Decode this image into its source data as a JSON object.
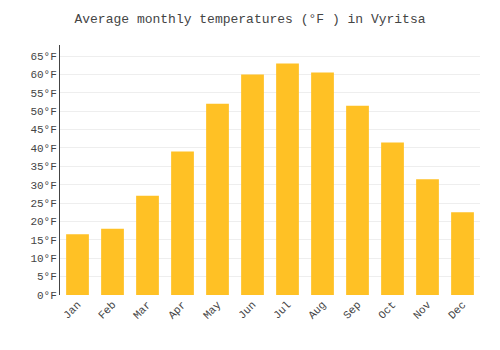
{
  "chart_data": {
    "type": "bar",
    "title": "Average monthly temperatures (°F ) in Vyritsa",
    "categories": [
      "Jan",
      "Feb",
      "Mar",
      "Apr",
      "May",
      "Jun",
      "Jul",
      "Aug",
      "Sep",
      "Oct",
      "Nov",
      "Dec"
    ],
    "values": [
      16.5,
      18.0,
      27.0,
      39.0,
      52.0,
      60.0,
      63.0,
      60.5,
      51.5,
      41.5,
      31.5,
      22.5
    ],
    "color": "#FFC125",
    "ylim": [
      0,
      68
    ],
    "yticks": [
      {
        "value": 0,
        "label": "0°F"
      },
      {
        "value": 5,
        "label": "5°F"
      },
      {
        "value": 10,
        "label": "10°F"
      },
      {
        "value": 15,
        "label": "15°F"
      },
      {
        "value": 20,
        "label": "20°F"
      },
      {
        "value": 25,
        "label": "25°F"
      },
      {
        "value": 30,
        "label": "30°F"
      },
      {
        "value": 35,
        "label": "35°F"
      },
      {
        "value": 40,
        "label": "40°F"
      },
      {
        "value": 45,
        "label": "45°F"
      },
      {
        "value": 50,
        "label": "50°F"
      },
      {
        "value": 55,
        "label": "55°F"
      },
      {
        "value": 60,
        "label": "60°F"
      },
      {
        "value": 65,
        "label": "65°F"
      }
    ],
    "grid": true
  }
}
